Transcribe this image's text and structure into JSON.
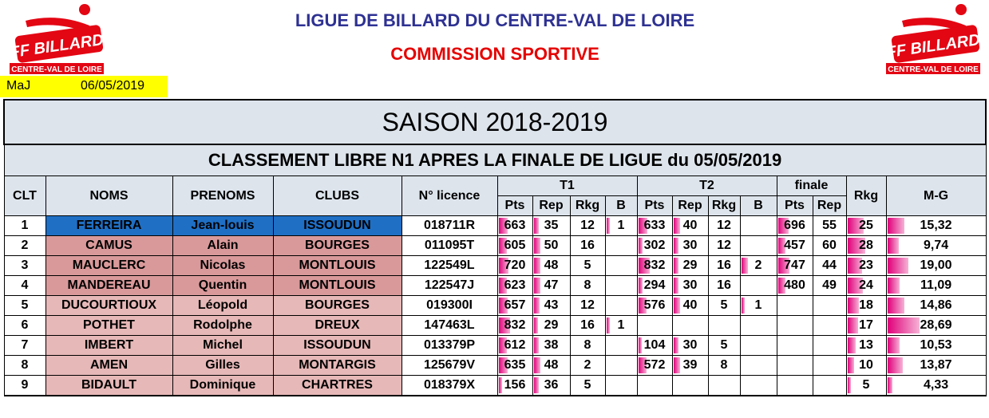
{
  "header": {
    "title": "LIGUE DE BILLARD DU CENTRE-VAL DE LOIRE",
    "subtitle": "COMMISSION SPORTIVE",
    "logo_text": "FF BILLARD",
    "logo_region": "CENTRE-VAL DE LOIRE"
  },
  "update": {
    "label": "MaJ",
    "date": "06/05/2019"
  },
  "season": "SAISON 2018-2019",
  "ranking_title": "CLASSEMENT LIBRE N1 APRES LA FINALE DE LIGUE du 05/05/2019",
  "columns": {
    "clt": "CLT",
    "noms": "NOMS",
    "prenoms": "PRENOMS",
    "clubs": "CLUBS",
    "licence": "N° licence",
    "t1": "T1",
    "t2": "T2",
    "finale": "finale",
    "rkg": "Rkg",
    "mg": "M-G",
    "pts": "Pts",
    "rep": "Rep",
    "rkg_sub": "Rkg",
    "b": "B"
  },
  "colors": {
    "pink_bar": "#e0007a",
    "blue_row": "#1f6fc5",
    "dark_row": "#d9999a",
    "light_row": "#e6b8b7",
    "header_bg": "#dde4ec"
  },
  "rows": [
    {
      "clt": "1",
      "nom": "FERREIRA",
      "prenom": "Jean-louis",
      "club": "ISSOUDUN",
      "licence": "018711R",
      "t1_pts": "663",
      "t1_rep": "35",
      "t1_rkg": "12",
      "t1_b": "1",
      "t2_pts": "633",
      "t2_rep": "40",
      "t2_rkg": "12",
      "t2_b": "",
      "f_pts": "696",
      "f_rep": "55",
      "rkg": "25",
      "mg": "15,32",
      "style": "blue"
    },
    {
      "clt": "2",
      "nom": "CAMUS",
      "prenom": "Alain",
      "club": "BOURGES",
      "licence": "011095T",
      "t1_pts": "605",
      "t1_rep": "50",
      "t1_rkg": "16",
      "t1_b": "",
      "t2_pts": "302",
      "t2_rep": "30",
      "t2_rkg": "12",
      "t2_b": "",
      "f_pts": "457",
      "f_rep": "60",
      "rkg": "28",
      "mg": "9,74",
      "style": "dark"
    },
    {
      "clt": "3",
      "nom": "MAUCLERC",
      "prenom": "Nicolas",
      "club": "MONTLOUIS",
      "licence": "122549L",
      "t1_pts": "720",
      "t1_rep": "48",
      "t1_rkg": "5",
      "t1_b": "",
      "t2_pts": "832",
      "t2_rep": "29",
      "t2_rkg": "16",
      "t2_b": "2",
      "f_pts": "747",
      "f_rep": "44",
      "rkg": "23",
      "mg": "19,00",
      "style": "dark"
    },
    {
      "clt": "4",
      "nom": "MANDEREAU",
      "prenom": "Quentin",
      "club": "MONTLOUIS",
      "licence": "122547J",
      "t1_pts": "623",
      "t1_rep": "47",
      "t1_rkg": "8",
      "t1_b": "",
      "t2_pts": "294",
      "t2_rep": "30",
      "t2_rkg": "16",
      "t2_b": "",
      "f_pts": "480",
      "f_rep": "49",
      "rkg": "24",
      "mg": "11,09",
      "style": "dark"
    },
    {
      "clt": "5",
      "nom": "DUCOURTIOUX",
      "prenom": "Léopold",
      "club": "BOURGES",
      "licence": "019300I",
      "t1_pts": "657",
      "t1_rep": "43",
      "t1_rkg": "12",
      "t1_b": "",
      "t2_pts": "576",
      "t2_rep": "40",
      "t2_rkg": "5",
      "t2_b": "1",
      "f_pts": "",
      "f_rep": "",
      "rkg": "18",
      "mg": "14,86",
      "style": "light"
    },
    {
      "clt": "6",
      "nom": "POTHET",
      "prenom": "Rodolphe",
      "club": "DREUX",
      "licence": "147463L",
      "t1_pts": "832",
      "t1_rep": "29",
      "t1_rkg": "16",
      "t1_b": "1",
      "t2_pts": "",
      "t2_rep": "",
      "t2_rkg": "",
      "t2_b": "",
      "f_pts": "",
      "f_rep": "",
      "rkg": "17",
      "mg": "28,69",
      "style": "light"
    },
    {
      "clt": "7",
      "nom": "IMBERT",
      "prenom": "Michel",
      "club": "ISSOUDUN",
      "licence": "013379P",
      "t1_pts": "612",
      "t1_rep": "38",
      "t1_rkg": "8",
      "t1_b": "",
      "t2_pts": "104",
      "t2_rep": "30",
      "t2_rkg": "5",
      "t2_b": "",
      "f_pts": "",
      "f_rep": "",
      "rkg": "13",
      "mg": "10,53",
      "style": "light"
    },
    {
      "clt": "8",
      "nom": "AMEN",
      "prenom": "Gilles",
      "club": "MONTARGIS",
      "licence": "125679V",
      "t1_pts": "635",
      "t1_rep": "48",
      "t1_rkg": "2",
      "t1_b": "",
      "t2_pts": "572",
      "t2_rep": "39",
      "t2_rkg": "8",
      "t2_b": "",
      "f_pts": "",
      "f_rep": "",
      "rkg": "10",
      "mg": "13,87",
      "style": "light"
    },
    {
      "clt": "9",
      "nom": "BIDAULT",
      "prenom": "Dominique",
      "club": "CHARTRES",
      "licence": "018379X",
      "t1_pts": "156",
      "t1_rep": "36",
      "t1_rkg": "5",
      "t1_b": "",
      "t2_pts": "",
      "t2_rep": "",
      "t2_rkg": "",
      "t2_b": "",
      "f_pts": "",
      "f_rep": "",
      "rkg": "5",
      "mg": "4,33",
      "style": "light"
    }
  ]
}
